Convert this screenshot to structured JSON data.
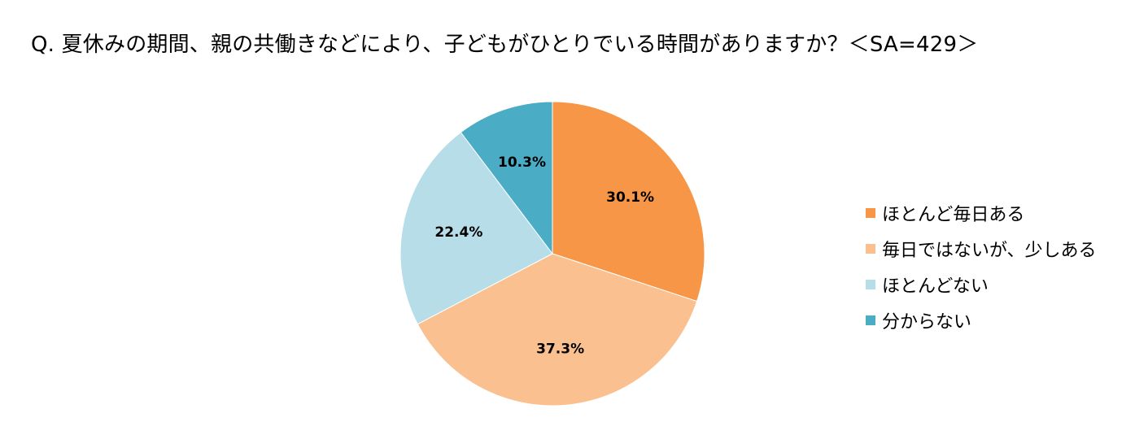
{
  "chart_data": {
    "type": "pie",
    "title": "Q. 夏休みの期間、親の共働きなどにより、子どもがひとりでいる時間がありますか？＜SA=429＞",
    "categories": [
      "ほとんど毎日ある",
      "毎日ではないが、少しある",
      "ほとんどない",
      "分からない"
    ],
    "values": [
      30.1,
      37.3,
      22.4,
      10.3
    ],
    "data_labels": [
      "30.1%",
      "37.3%",
      "22.4%",
      "10.3%"
    ],
    "colors": [
      "#F79646",
      "#FAC090",
      "#B7DEE8",
      "#4BACC6"
    ],
    "legend_position": "right",
    "start_angle": "12 o'clock",
    "direction": "clockwise"
  }
}
